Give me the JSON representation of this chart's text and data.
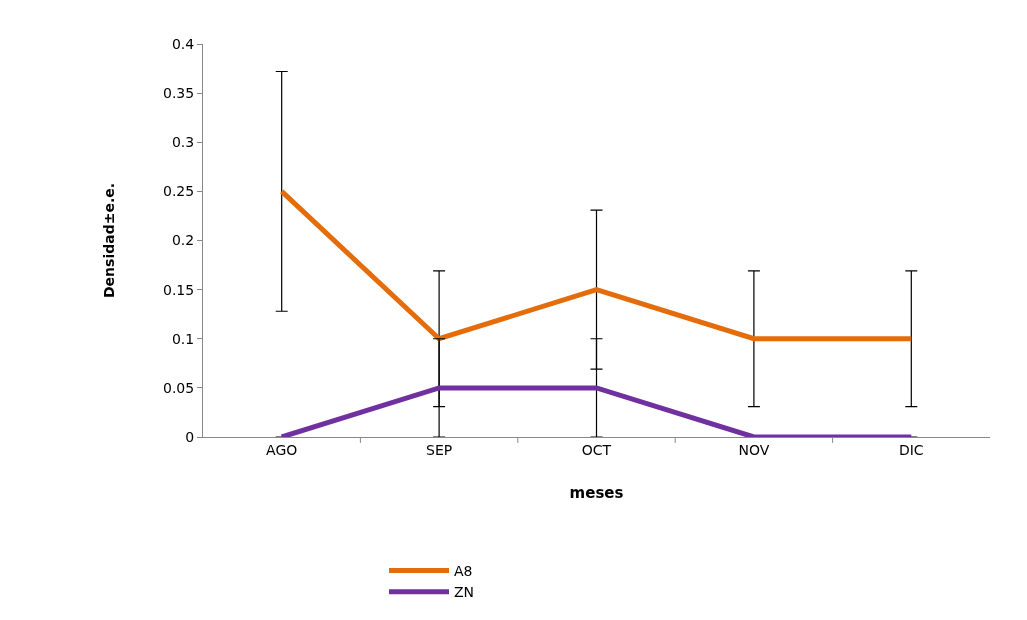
{
  "chart_data": {
    "type": "line",
    "xlabel": "meses",
    "ylabel": "Densidad±e.e.",
    "categories": [
      "AGO",
      "SEP",
      "OCT",
      "NOV",
      "DIC"
    ],
    "series": [
      {
        "name": "A8",
        "color": "#e46c0a",
        "values": [
          0.25,
          0.1,
          0.15,
          0.1,
          0.1
        ],
        "errors": [
          0.122,
          0.069,
          0.081,
          0.069,
          0.069
        ]
      },
      {
        "name": "ZN",
        "color": "#7030a0",
        "values": [
          0,
          0.05,
          0.05,
          0,
          0
        ],
        "errors": [
          null,
          0.05,
          0.05,
          null,
          null
        ]
      }
    ],
    "ylim": [
      0,
      0.4
    ],
    "yticks": [
      0,
      0.05,
      0.1,
      0.15,
      0.2,
      0.25,
      0.3,
      0.35,
      0.4
    ],
    "grid": false,
    "legend": "bottom",
    "marker": "none",
    "line_style": "solid"
  }
}
